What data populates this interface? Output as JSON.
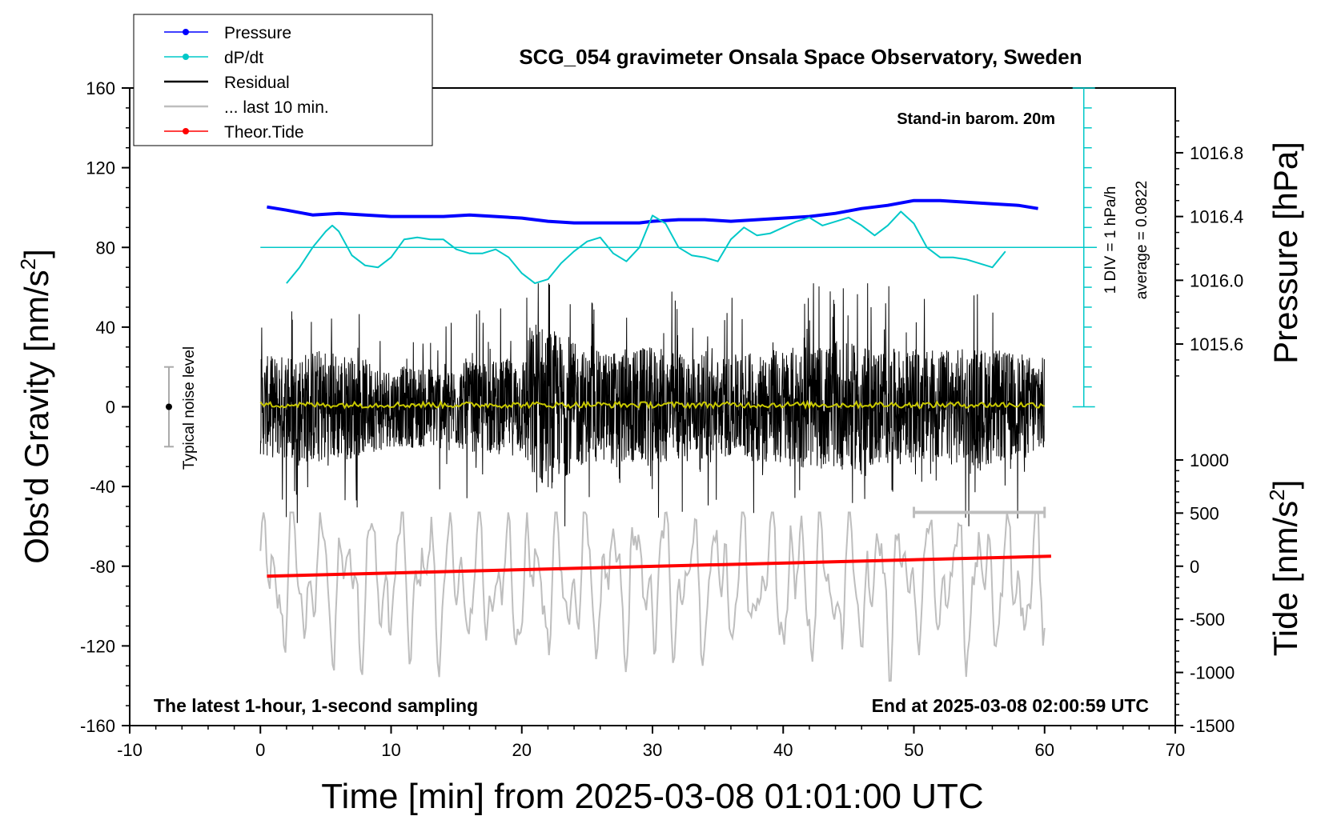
{
  "title": "SCG_054 gravimeter Onsala Space Observatory, Sweden",
  "subtitle_left": "The latest 1-hour, 1-second sampling",
  "subtitle_right": "End at 2025-03-08 02:00:59 UTC",
  "station_note": "Stand-in barom. 20m",
  "noise_label": "Typical noise level",
  "dpdt_scale_label": "1 DIV = 1 hPa/h",
  "dpdt_average_label": "average = 0.0822",
  "legend": [
    {
      "label": "Pressure",
      "color": "#0000ff",
      "marker": true
    },
    {
      "label": "dP/dt",
      "color": "#00c8c8",
      "marker": true
    },
    {
      "label": "Residual",
      "color": "#000000",
      "marker": false
    },
    {
      "label": "... last 10 min.",
      "color": "#bebebe",
      "marker": false
    },
    {
      "label": "Theor.Tide",
      "color": "#ff0000",
      "marker": true
    }
  ],
  "chart_data": {
    "type": "line",
    "title": "SCG_054 gravimeter Onsala Space Observatory, Sweden",
    "xlabel": "Time [min] from 2025-03-08 01:01:00 UTC",
    "ylabel": "Obs'd Gravity [nm/s²]",
    "y2label_pressure": "Pressure [hPa]",
    "y2label_tide": "Tide [nm/s²]",
    "xlim": [
      -10,
      70
    ],
    "ylim": [
      -160,
      160
    ],
    "x_ticks": [
      "-10",
      "0",
      "10",
      "20",
      "30",
      "40",
      "50",
      "60",
      "70"
    ],
    "y_ticks": [
      "160",
      "120",
      "80",
      "40",
      "0",
      "-40",
      "-80",
      "-120",
      "-160"
    ],
    "pressure_axis": {
      "ticks": [
        "1016.8",
        "1016.4",
        "1016.0",
        "1015.6"
      ],
      "tick_values": [
        1016.8,
        1016.4,
        1016.0,
        1015.6
      ],
      "gravity_equiv_at_1016_0": 63.5,
      "gravity_units_per_hPa": 80
    },
    "tide_axis": {
      "ticks": [
        "1000",
        "500",
        "0",
        "-500",
        "-1000",
        "-1500"
      ],
      "tick_values": [
        1000,
        500,
        0,
        -500,
        -1000,
        -1500
      ],
      "gravity_equiv_at_0": -80,
      "gravity_units_per_1000": 53.33
    },
    "dpdt_zero_line": 80,
    "dpdt_scale_bar": {
      "x": 63,
      "y_range": [
        0,
        160
      ],
      "div_ticks": [
        0,
        10,
        20,
        30,
        40,
        50,
        60,
        70,
        80,
        90,
        100,
        110,
        120,
        130,
        140,
        150,
        160
      ]
    },
    "noise_bar": {
      "x": -7,
      "center": 0,
      "range": [
        -20,
        20
      ]
    },
    "last_10min_bar": {
      "x_range": [
        50,
        60
      ],
      "y": -53
    },
    "series": [
      {
        "name": "Pressure",
        "color": "#0000ff",
        "unit": "hPa",
        "x": [
          0.5,
          2,
          4,
          6,
          8,
          10,
          12,
          14,
          16,
          18,
          20,
          22,
          24,
          26,
          28,
          29,
          30,
          32,
          34,
          36,
          38,
          40,
          42,
          44,
          46,
          48,
          50,
          52,
          54,
          56,
          58,
          59.5
        ],
        "values": [
          1016.46,
          1016.44,
          1016.41,
          1016.42,
          1016.41,
          1016.4,
          1016.4,
          1016.4,
          1016.41,
          1016.4,
          1016.39,
          1016.37,
          1016.36,
          1016.36,
          1016.36,
          1016.36,
          1016.37,
          1016.38,
          1016.38,
          1016.37,
          1016.38,
          1016.39,
          1016.4,
          1016.42,
          1016.45,
          1016.47,
          1016.5,
          1016.5,
          1016.49,
          1016.48,
          1016.47,
          1016.45
        ]
      },
      {
        "name": "dP/dt",
        "color": "#00c8c8",
        "unit": "nm/s² plotted",
        "x": [
          2,
          3,
          4,
          5,
          5.5,
          6,
          7,
          8,
          9,
          10,
          11,
          12,
          13,
          14,
          15,
          16,
          17,
          18,
          19,
          20,
          21,
          22,
          23,
          24,
          25,
          26,
          27,
          28,
          29,
          30,
          31,
          32,
          33,
          34,
          35,
          36,
          37,
          38,
          39,
          40,
          41,
          42,
          43,
          44,
          45,
          46,
          47,
          48,
          49,
          50,
          51,
          52,
          53,
          54,
          55,
          56,
          57
        ],
        "values": [
          62,
          70,
          80,
          88,
          91,
          88,
          76,
          71,
          70,
          75,
          84,
          85,
          84,
          84,
          79,
          77,
          77,
          79,
          75,
          67,
          62,
          64,
          72,
          78,
          83,
          85,
          77,
          73,
          80,
          96,
          92,
          80,
          76,
          75,
          73,
          84,
          90,
          86,
          87,
          90,
          93,
          95,
          91,
          93,
          95,
          91,
          86,
          91,
          98,
          92,
          80,
          75,
          75,
          74,
          72,
          70,
          78
        ]
      },
      {
        "name": "Theor.Tide",
        "color": "#ff0000",
        "unit": "nm/s²",
        "x": [
          0.5,
          60.5
        ],
        "values": [
          -85,
          -75
        ]
      }
    ],
    "residual_envelope": {
      "x": [
        0,
        5,
        10,
        15,
        20,
        21,
        25,
        30,
        35,
        40,
        45,
        50,
        55,
        60
      ],
      "typical_amplitude": [
        25,
        30,
        20,
        22,
        25,
        45,
        28,
        30,
        25,
        30,
        32,
        28,
        30,
        25
      ],
      "max": 62,
      "min": -60,
      "smoothed_color": "#c8c800"
    },
    "last_10min_curve": {
      "color": "#bebebe",
      "center": -88,
      "max": -53,
      "min": -150
    }
  }
}
